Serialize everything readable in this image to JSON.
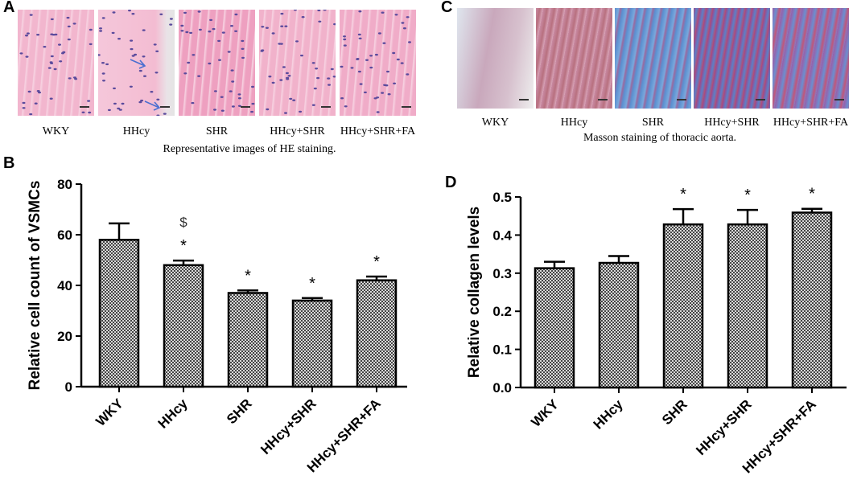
{
  "panels": {
    "a": {
      "letter": "A",
      "caption": "Representative images of HE staining.",
      "labels": [
        "WKY",
        "HHcy",
        "SHR",
        "HHcy+SHR",
        "HHcy+SHR+FA"
      ]
    },
    "c": {
      "letter": "C",
      "caption": "Masson staining of thoracic aorta.",
      "labels": [
        "WKY",
        "HHcy",
        "SHR",
        "HHcy+SHR",
        "HHcy+SHR+FA"
      ]
    },
    "b": {
      "letter": "B"
    },
    "d": {
      "letter": "D"
    }
  },
  "colors": {
    "he_stain": "#efa7c4",
    "masson_blue": "#5b8fd0",
    "masson_red": "#b84a72",
    "bar_fill": "#8c8c8c",
    "text": "#000000"
  },
  "chart_data": [
    {
      "type": "bar",
      "panel": "B",
      "categories": [
        "WKY",
        "HHcy",
        "SHR",
        "HHcy+SHR",
        "HHcy+SHR+FA"
      ],
      "values": [
        58,
        48,
        37,
        34,
        42
      ],
      "errors": [
        6.5,
        1.8,
        1.0,
        1.0,
        1.5
      ],
      "annotations": [
        "",
        "*",
        "*",
        "*",
        "*"
      ],
      "annotations_extra": [
        "",
        "$",
        "",
        "",
        ""
      ],
      "ylabel": "Relative cell count of VSMCs",
      "ylim": [
        0,
        80
      ],
      "yticks": [
        "0",
        "20",
        "40",
        "60",
        "80"
      ],
      "grid": false
    },
    {
      "type": "bar",
      "panel": "D",
      "categories": [
        "WKY",
        "HHcy",
        "SHR",
        "HHcy+SHR",
        "HHcy+SHR+FA"
      ],
      "values": [
        0.313,
        0.327,
        0.428,
        0.428,
        0.459
      ],
      "errors": [
        0.017,
        0.018,
        0.04,
        0.038,
        0.01
      ],
      "annotations": [
        "",
        "",
        "*",
        "*",
        "*"
      ],
      "ylabel": "Relative collagen levels",
      "ylim": [
        0,
        0.5
      ],
      "yticks": [
        "0.0",
        "0.1",
        "0.2",
        "0.3",
        "0.4",
        "0.5"
      ],
      "grid": false
    }
  ]
}
